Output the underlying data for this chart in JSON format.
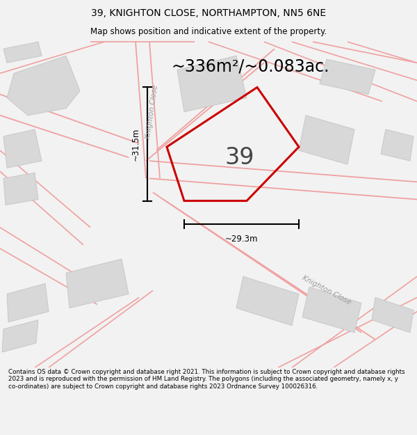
{
  "title_line1": "39, KNIGHTON CLOSE, NORTHAMPTON, NN5 6NE",
  "title_line2": "Map shows position and indicative extent of the property.",
  "area_text": "~336m²/~0.083ac.",
  "property_number": "39",
  "dim_width": "~29.3m",
  "dim_height": "~31.5m",
  "road_label_left": "Knighton Close",
  "road_label_bottom": "Knighton Close",
  "footer_text": "Contains OS data © Crown copyright and database right 2021. This information is subject to Crown copyright and database rights 2023 and is reproduced with the permission of HM Land Registry. The polygons (including the associated geometry, namely x, y co-ordinates) are subject to Crown copyright and database rights 2023 Ordnance Survey 100026316.",
  "bg_color": "#f2f2f2",
  "map_bg": "#ebebeb",
  "plot_outline_color": "#cc0000",
  "building_color": "#d8d8d8",
  "building_edge_color": "#c8c8c8",
  "road_line_color": "#f0a0a0",
  "dim_color": "#000000",
  "text_color": "#000000",
  "road_text_color": "#999999",
  "title_fontsize": 10,
  "subtitle_fontsize": 8.5,
  "area_fontsize": 17,
  "property_fontsize": 24,
  "dim_fontsize": 8.5,
  "road_fontsize": 7.5,
  "footer_fontsize": 6.3
}
